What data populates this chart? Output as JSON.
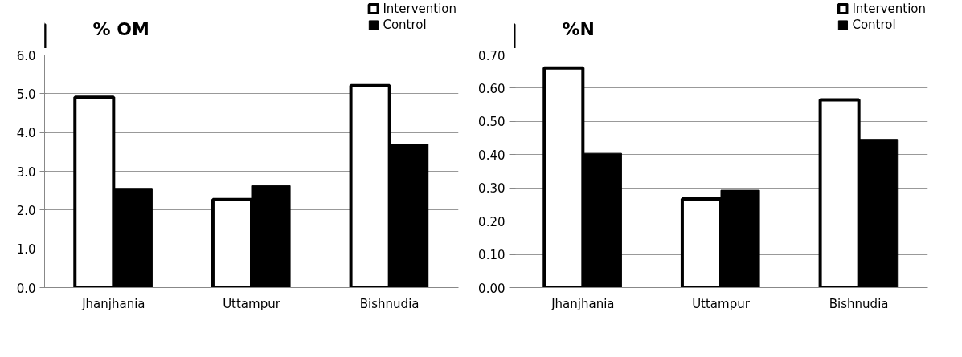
{
  "chart_data": [
    {
      "type": "bar",
      "title": "% OM",
      "categories": [
        "Jhanjhania",
        "Uttampur",
        "Bishnudia"
      ],
      "series": [
        {
          "name": "Intervention",
          "color": "#ffffff",
          "values": [
            4.91,
            2.27,
            5.21
          ]
        },
        {
          "name": "Control",
          "color": "#000000",
          "values": [
            2.56,
            2.63,
            3.7
          ]
        }
      ],
      "ylim": [
        0,
        6
      ],
      "yticks": [
        {
          "value": 0,
          "label": "0.0"
        },
        {
          "value": 1,
          "label": "1.0"
        },
        {
          "value": 2,
          "label": "2.0"
        },
        {
          "value": 3,
          "label": "3.0"
        },
        {
          "value": 4,
          "label": "4.0"
        },
        {
          "value": 5,
          "label": "5.0"
        },
        {
          "value": 6,
          "label": "6.0"
        }
      ],
      "grid": "y",
      "legend": "top right"
    },
    {
      "type": "bar",
      "title": "%N",
      "categories": [
        "Jhanjhania",
        "Uttampur",
        "Bishnudia"
      ],
      "series": [
        {
          "name": "Intervention",
          "color": "#ffffff",
          "values": [
            0.661,
            0.267,
            0.565
          ]
        },
        {
          "name": "Control",
          "color": "#000000",
          "values": [
            0.404,
            0.293,
            0.446
          ]
        }
      ],
      "ylim": [
        0,
        0.7
      ],
      "yticks": [
        {
          "value": 0,
          "label": "0.00"
        },
        {
          "value": 0.1,
          "label": "0.10"
        },
        {
          "value": 0.2,
          "label": "0.20"
        },
        {
          "value": 0.3,
          "label": "0.30"
        },
        {
          "value": 0.4,
          "label": "0.40"
        },
        {
          "value": 0.5,
          "label": "0.50"
        },
        {
          "value": 0.6,
          "label": "0.60"
        },
        {
          "value": 0.7,
          "label": "0.70"
        }
      ],
      "grid": "y",
      "legend": "top right"
    }
  ]
}
